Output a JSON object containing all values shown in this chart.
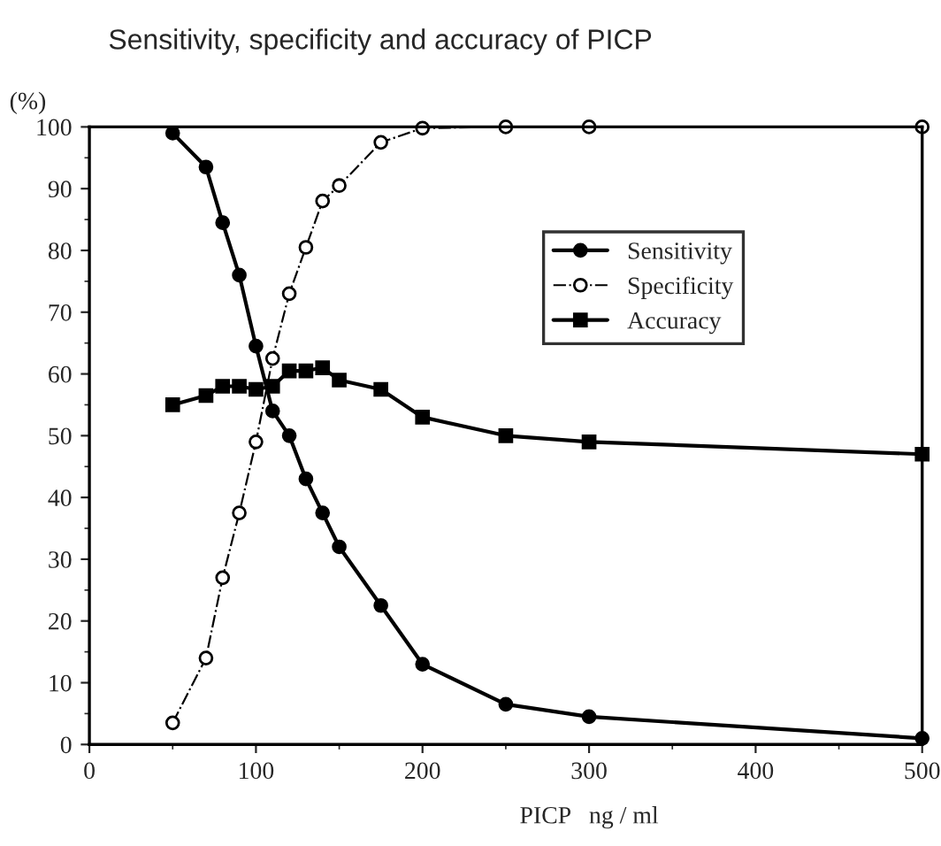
{
  "chart_data": {
    "type": "line",
    "title": "Sensitivity, specificity and accuracy of PICP",
    "ylabel": "(%)",
    "xlabel": "PICP   ng / ml",
    "xlim": [
      0,
      500
    ],
    "xticks": [
      0,
      100,
      200,
      300,
      400,
      500
    ],
    "ylim": [
      0,
      100
    ],
    "yticks": [
      0,
      10,
      20,
      30,
      40,
      50,
      60,
      70,
      80,
      90,
      100
    ],
    "grid": false,
    "legend": "top right",
    "series": [
      {
        "name": "Sensitivity",
        "color": "#000000",
        "marker": "circle",
        "line_style": "solid",
        "x": [
          50,
          70,
          80,
          90,
          100,
          110,
          120,
          130,
          140,
          150,
          175,
          200,
          250,
          300,
          500
        ],
        "values": [
          99,
          93.5,
          84.5,
          76,
          64.5,
          54,
          50,
          43,
          37.5,
          32,
          22.5,
          13,
          6.5,
          4.5,
          1
        ]
      },
      {
        "name": "Specificity",
        "color": "#000000",
        "marker": "circle",
        "line_style": "dashed",
        "x": [
          50,
          70,
          80,
          90,
          100,
          110,
          120,
          130,
          140,
          150,
          175,
          200,
          250,
          300,
          500
        ],
        "values": [
          3.5,
          14,
          27,
          37.5,
          49,
          62.5,
          73,
          80.5,
          88,
          90.5,
          97.5,
          99.8,
          100,
          100,
          100
        ]
      },
      {
        "name": "Accuracy",
        "color": "#000000",
        "marker": "square",
        "line_style": "solid",
        "x": [
          50,
          70,
          80,
          90,
          100,
          110,
          120,
          130,
          140,
          150,
          175,
          200,
          250,
          300,
          500
        ],
        "values": [
          55,
          56.5,
          58,
          58,
          57.5,
          58,
          60.5,
          60.5,
          61,
          59,
          57.5,
          53,
          50,
          49,
          47
        ]
      }
    ]
  }
}
